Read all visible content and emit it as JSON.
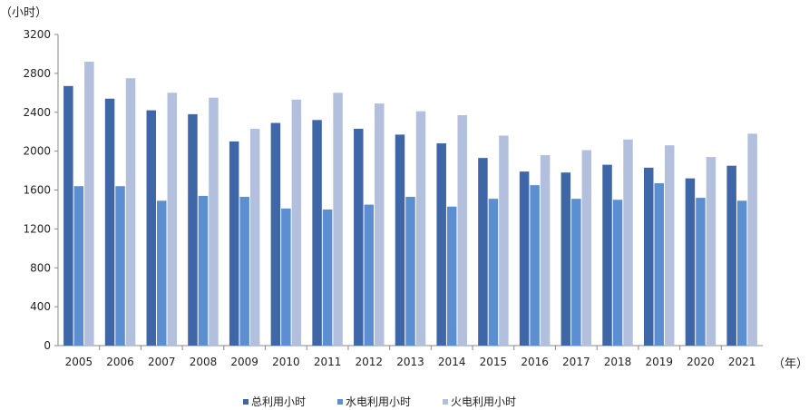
{
  "chart_data": {
    "type": "bar",
    "title": "",
    "ylabel": "（小时）",
    "xlabel": "（年）",
    "ylim": [
      0,
      3200
    ],
    "yticks": [
      0,
      400,
      800,
      1200,
      1600,
      2000,
      2400,
      2800,
      3200
    ],
    "grid": false,
    "legend_position": "bottom",
    "categories": [
      "2005",
      "2006",
      "2007",
      "2008",
      "2009",
      "2010",
      "2011",
      "2012",
      "2013",
      "2014",
      "2015",
      "2016",
      "2017",
      "2018",
      "2019",
      "2020",
      "2021"
    ],
    "series": [
      {
        "name": "总利用小时",
        "color": "#3f67a8",
        "values": [
          2670,
          2540,
          2420,
          2380,
          2100,
          2290,
          2320,
          2230,
          2170,
          2080,
          1930,
          1790,
          1780,
          1860,
          1830,
          1720,
          1850
        ]
      },
      {
        "name": "水电利用小时",
        "color": "#5b8fd1",
        "values": [
          1640,
          1640,
          1490,
          1540,
          1530,
          1410,
          1400,
          1450,
          1530,
          1430,
          1510,
          1650,
          1510,
          1500,
          1670,
          1520,
          1490
        ]
      },
      {
        "name": "火电利用小时",
        "color": "#b2c0de",
        "values": [
          2920,
          2750,
          2600,
          2550,
          2230,
          2530,
          2600,
          2490,
          2410,
          2370,
          2160,
          1960,
          2010,
          2120,
          2060,
          1940,
          2180
        ]
      }
    ]
  }
}
